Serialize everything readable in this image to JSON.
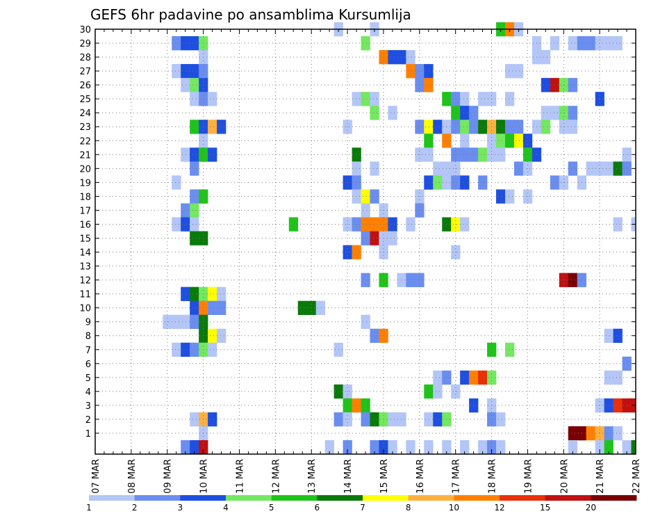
{
  "chart_data": {
    "type": "heatmap",
    "title": "GEFS 6hr padavine po ansamblima Kursumlija",
    "xlabel": "",
    "ylabel": "",
    "x_ticks": [
      "07 MAR",
      "08 MAR",
      "09 MAR",
      "10 MAR",
      "11 MAR",
      "12 MAR",
      "13 MAR",
      "14 MAR",
      "15 MAR",
      "16 MAR",
      "17 MAR",
      "18 MAR",
      "19 MAR",
      "20 MAR",
      "21 MAR",
      "22 MAR"
    ],
    "x_range_steps_6h": [
      0,
      60
    ],
    "y_range_members": [
      0,
      30
    ],
    "y_ticks": [
      1,
      2,
      3,
      4,
      5,
      6,
      7,
      8,
      9,
      10,
      11,
      12,
      13,
      14,
      15,
      16,
      17,
      18,
      19,
      20,
      21,
      22,
      23,
      24,
      25,
      26,
      27,
      28,
      29,
      30
    ],
    "grid": true,
    "colorbar": {
      "levels": [
        1,
        2,
        3,
        4,
        5,
        6,
        7,
        8,
        10,
        12,
        15,
        20
      ],
      "colors": [
        "#b3c6f7",
        "#6a8df0",
        "#1e4fe0",
        "#73e860",
        "#1fc41a",
        "#0a7a0a",
        "#ffff00",
        "#ffb040",
        "#ff8000",
        "#e8300a",
        "#c01010",
        "#7a0000"
      ]
    },
    "cells": [
      [
        9,
        29,
        2
      ],
      [
        10,
        29,
        3
      ],
      [
        11,
        29,
        3
      ],
      [
        12,
        29,
        4
      ],
      [
        30,
        29,
        4
      ],
      [
        49,
        29,
        1
      ],
      [
        51,
        29,
        1
      ],
      [
        53,
        29,
        1
      ],
      [
        54,
        29,
        2
      ],
      [
        55,
        29,
        2
      ],
      [
        56,
        29,
        1
      ],
      [
        57,
        29,
        1
      ],
      [
        58,
        29,
        1
      ],
      [
        45,
        30,
        5
      ],
      [
        46,
        30,
        9
      ],
      [
        47,
        30,
        1
      ],
      [
        27,
        30,
        1
      ],
      [
        31,
        30,
        1
      ],
      [
        12,
        28,
        1
      ],
      [
        32,
        28,
        9
      ],
      [
        33,
        28,
        3
      ],
      [
        34,
        28,
        3
      ],
      [
        35,
        28,
        1
      ],
      [
        49,
        28,
        1
      ],
      [
        50,
        28,
        1
      ],
      [
        9,
        27,
        1
      ],
      [
        10,
        27,
        3
      ],
      [
        11,
        27,
        3
      ],
      [
        12,
        27,
        2
      ],
      [
        35,
        27,
        9
      ],
      [
        36,
        27,
        2
      ],
      [
        37,
        27,
        3
      ],
      [
        46,
        27,
        1
      ],
      [
        47,
        27,
        1
      ],
      [
        10,
        26,
        1
      ],
      [
        11,
        26,
        4
      ],
      [
        12,
        26,
        3
      ],
      [
        36,
        26,
        2
      ],
      [
        37,
        26,
        9
      ],
      [
        50,
        26,
        3
      ],
      [
        51,
        26,
        11
      ],
      [
        52,
        26,
        4
      ],
      [
        53,
        26,
        2
      ],
      [
        11,
        25,
        1
      ],
      [
        12,
        25,
        2
      ],
      [
        13,
        25,
        1
      ],
      [
        29,
        25,
        1
      ],
      [
        30,
        25,
        4
      ],
      [
        31,
        25,
        1
      ],
      [
        39,
        25,
        5
      ],
      [
        40,
        25,
        2
      ],
      [
        41,
        25,
        1
      ],
      [
        43,
        25,
        1
      ],
      [
        44,
        25,
        1
      ],
      [
        46,
        25,
        1
      ],
      [
        56,
        25,
        3
      ],
      [
        31,
        24,
        4
      ],
      [
        33,
        24,
        1
      ],
      [
        40,
        24,
        5
      ],
      [
        41,
        24,
        3
      ],
      [
        42,
        24,
        2
      ],
      [
        50,
        24,
        1
      ],
      [
        51,
        24,
        1
      ],
      [
        52,
        24,
        4
      ],
      [
        53,
        24,
        2
      ],
      [
        11,
        23,
        5
      ],
      [
        12,
        23,
        3
      ],
      [
        13,
        23,
        8
      ],
      [
        14,
        23,
        3
      ],
      [
        28,
        23,
        1
      ],
      [
        36,
        23,
        2
      ],
      [
        37,
        23,
        7
      ],
      [
        38,
        23,
        3
      ],
      [
        39,
        23,
        1
      ],
      [
        40,
        23,
        2
      ],
      [
        41,
        23,
        4
      ],
      [
        42,
        23,
        2
      ],
      [
        43,
        23,
        6
      ],
      [
        44,
        23,
        8
      ],
      [
        45,
        23,
        6
      ],
      [
        46,
        23,
        2
      ],
      [
        47,
        23,
        2
      ],
      [
        49,
        23,
        1
      ],
      [
        50,
        23,
        4
      ],
      [
        52,
        23,
        1
      ],
      [
        53,
        23,
        1
      ],
      [
        12,
        22,
        1
      ],
      [
        37,
        22,
        5
      ],
      [
        39,
        22,
        9
      ],
      [
        41,
        22,
        1
      ],
      [
        44,
        22,
        1
      ],
      [
        45,
        22,
        4
      ],
      [
        46,
        22,
        5
      ],
      [
        47,
        22,
        7
      ],
      [
        48,
        22,
        3
      ],
      [
        10,
        21,
        1
      ],
      [
        11,
        21,
        3
      ],
      [
        12,
        21,
        5
      ],
      [
        13,
        21,
        3
      ],
      [
        29,
        21,
        6
      ],
      [
        36,
        21,
        1
      ],
      [
        37,
        21,
        1
      ],
      [
        40,
        21,
        2
      ],
      [
        41,
        21,
        2
      ],
      [
        42,
        21,
        2
      ],
      [
        43,
        21,
        4
      ],
      [
        44,
        21,
        1
      ],
      [
        45,
        21,
        1
      ],
      [
        48,
        21,
        5
      ],
      [
        49,
        21,
        3
      ],
      [
        59,
        21,
        1
      ],
      [
        11,
        20,
        2
      ],
      [
        29,
        20,
        1
      ],
      [
        31,
        20,
        1
      ],
      [
        38,
        20,
        1
      ],
      [
        39,
        20,
        1
      ],
      [
        40,
        20,
        1
      ],
      [
        47,
        20,
        2
      ],
      [
        48,
        20,
        1
      ],
      [
        53,
        20,
        2
      ],
      [
        55,
        20,
        1
      ],
      [
        56,
        20,
        1
      ],
      [
        57,
        20,
        1
      ],
      [
        58,
        20,
        6
      ],
      [
        59,
        20,
        2
      ],
      [
        9,
        19,
        1
      ],
      [
        28,
        19,
        3
      ],
      [
        29,
        19,
        2
      ],
      [
        37,
        19,
        3
      ],
      [
        38,
        19,
        4
      ],
      [
        39,
        19,
        1
      ],
      [
        40,
        19,
        2
      ],
      [
        41,
        19,
        3
      ],
      [
        43,
        19,
        2
      ],
      [
        51,
        19,
        2
      ],
      [
        52,
        19,
        1
      ],
      [
        54,
        19,
        1
      ],
      [
        11,
        18,
        2
      ],
      [
        12,
        18,
        5
      ],
      [
        29,
        18,
        1
      ],
      [
        30,
        18,
        7
      ],
      [
        31,
        18,
        2
      ],
      [
        36,
        18,
        1
      ],
      [
        45,
        18,
        3
      ],
      [
        46,
        18,
        1
      ],
      [
        48,
        18,
        1
      ],
      [
        10,
        17,
        2
      ],
      [
        11,
        17,
        4
      ],
      [
        30,
        17,
        1
      ],
      [
        32,
        17,
        1
      ],
      [
        36,
        17,
        2
      ],
      [
        9,
        16,
        1
      ],
      [
        10,
        16,
        3
      ],
      [
        11,
        16,
        1
      ],
      [
        22,
        16,
        5
      ],
      [
        28,
        16,
        1
      ],
      [
        29,
        16,
        2
      ],
      [
        30,
        16,
        9
      ],
      [
        31,
        16,
        9
      ],
      [
        32,
        16,
        9
      ],
      [
        33,
        16,
        3
      ],
      [
        35,
        16,
        1
      ],
      [
        39,
        16,
        6
      ],
      [
        40,
        16,
        7
      ],
      [
        41,
        16,
        1
      ],
      [
        58,
        16,
        1
      ],
      [
        60,
        16,
        1
      ],
      [
        11,
        15,
        6
      ],
      [
        12,
        15,
        6
      ],
      [
        30,
        15,
        2
      ],
      [
        31,
        15,
        11
      ],
      [
        32,
        15,
        1
      ],
      [
        33,
        15,
        1
      ],
      [
        28,
        14,
        3
      ],
      [
        29,
        14,
        9
      ],
      [
        32,
        14,
        1
      ],
      [
        40,
        14,
        1
      ],
      [
        30,
        12,
        2
      ],
      [
        32,
        12,
        5
      ],
      [
        34,
        12,
        1
      ],
      [
        35,
        12,
        2
      ],
      [
        36,
        12,
        2
      ],
      [
        52,
        12,
        11
      ],
      [
        53,
        12,
        12
      ],
      [
        54,
        12,
        2
      ],
      [
        10,
        11,
        3
      ],
      [
        11,
        11,
        6
      ],
      [
        12,
        11,
        4
      ],
      [
        13,
        11,
        7
      ],
      [
        14,
        11,
        1
      ],
      [
        11,
        10,
        3
      ],
      [
        12,
        10,
        9
      ],
      [
        13,
        10,
        2
      ],
      [
        14,
        10,
        2
      ],
      [
        23,
        10,
        6
      ],
      [
        24,
        10,
        6
      ],
      [
        25,
        10,
        1
      ],
      [
        8,
        9,
        1
      ],
      [
        9,
        9,
        1
      ],
      [
        10,
        9,
        1
      ],
      [
        11,
        9,
        2
      ],
      [
        12,
        9,
        6
      ],
      [
        30,
        9,
        1
      ],
      [
        12,
        8,
        6
      ],
      [
        13,
        8,
        7
      ],
      [
        14,
        8,
        1
      ],
      [
        31,
        8,
        2
      ],
      [
        32,
        8,
        9
      ],
      [
        57,
        8,
        1
      ],
      [
        58,
        8,
        3
      ],
      [
        9,
        7,
        1
      ],
      [
        10,
        7,
        3
      ],
      [
        11,
        7,
        2
      ],
      [
        12,
        7,
        4
      ],
      [
        13,
        7,
        1
      ],
      [
        27,
        7,
        1
      ],
      [
        44,
        7,
        5
      ],
      [
        46,
        7,
        4
      ],
      [
        59,
        6,
        2
      ],
      [
        38,
        5,
        1
      ],
      [
        39,
        5,
        2
      ],
      [
        41,
        5,
        3
      ],
      [
        42,
        5,
        9
      ],
      [
        43,
        5,
        10
      ],
      [
        44,
        5,
        4
      ],
      [
        57,
        5,
        1
      ],
      [
        58,
        5,
        1
      ],
      [
        27,
        4,
        6
      ],
      [
        28,
        4,
        1
      ],
      [
        37,
        4,
        5
      ],
      [
        38,
        4,
        1
      ],
      [
        40,
        4,
        1
      ],
      [
        28,
        3,
        5
      ],
      [
        29,
        3,
        9
      ],
      [
        30,
        3,
        5
      ],
      [
        42,
        3,
        3
      ],
      [
        44,
        3,
        1
      ],
      [
        56,
        3,
        1
      ],
      [
        57,
        3,
        3
      ],
      [
        58,
        3,
        10
      ],
      [
        59,
        3,
        11
      ],
      [
        60,
        3,
        11
      ],
      [
        11,
        2,
        1
      ],
      [
        12,
        2,
        8
      ],
      [
        13,
        2,
        3
      ],
      [
        27,
        2,
        2
      ],
      [
        28,
        2,
        1
      ],
      [
        30,
        2,
        2
      ],
      [
        31,
        2,
        6
      ],
      [
        32,
        2,
        4
      ],
      [
        33,
        2,
        1
      ],
      [
        34,
        2,
        1
      ],
      [
        37,
        2,
        1
      ],
      [
        38,
        2,
        3
      ],
      [
        39,
        2,
        4
      ],
      [
        44,
        2,
        2
      ],
      [
        45,
        2,
        1
      ],
      [
        12,
        1,
        1
      ],
      [
        53,
        1,
        12
      ],
      [
        54,
        1,
        12
      ],
      [
        55,
        1,
        9
      ],
      [
        56,
        1,
        8
      ],
      [
        57,
        1,
        2
      ],
      [
        58,
        1,
        1
      ],
      [
        10,
        0,
        2
      ],
      [
        11,
        0,
        3
      ],
      [
        12,
        0,
        11
      ],
      [
        26,
        0,
        1
      ],
      [
        28,
        0,
        2
      ],
      [
        31,
        0,
        2
      ],
      [
        32,
        0,
        3
      ],
      [
        33,
        0,
        1
      ],
      [
        35,
        0,
        1
      ],
      [
        37,
        0,
        1
      ],
      [
        39,
        0,
        1
      ],
      [
        41,
        0,
        1
      ],
      [
        43,
        0,
        1
      ],
      [
        44,
        0,
        2
      ],
      [
        45,
        0,
        1
      ],
      [
        53,
        0,
        1
      ],
      [
        56,
        0,
        1
      ],
      [
        57,
        0,
        5
      ],
      [
        59,
        0,
        1
      ],
      [
        60,
        0,
        6
      ]
    ]
  }
}
